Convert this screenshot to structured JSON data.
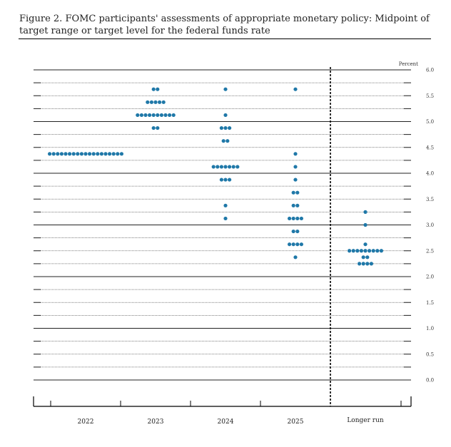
{
  "header": {
    "title": "Figure 2.  FOMC participants' assessments of appropriate monetary policy: Midpoint of target range or target level for the federal funds rate"
  },
  "chart_data": {
    "type": "scatter",
    "subtype": "dot-plot",
    "unit_label": "Percent",
    "ylim": [
      0,
      6
    ],
    "y_ticks": [
      "6.0",
      "5.5",
      "5.0",
      "4.5",
      "4.0",
      "3.5",
      "3.0",
      "2.5",
      "2.0",
      "1.5",
      "1.0",
      "0.5",
      "0.0"
    ],
    "categories": [
      "2022",
      "2023",
      "2024",
      "2025",
      "Longer run"
    ],
    "grid": true,
    "dot_color": "#1f78a8",
    "series": [
      {
        "category": "2022",
        "points": [
          {
            "y": 4.375,
            "count": 19
          }
        ]
      },
      {
        "category": "2023",
        "points": [
          {
            "y": 5.625,
            "count": 2
          },
          {
            "y": 5.375,
            "count": 5
          },
          {
            "y": 5.125,
            "count": 10
          },
          {
            "y": 4.875,
            "count": 2
          }
        ]
      },
      {
        "category": "2024",
        "points": [
          {
            "y": 5.625,
            "count": 1
          },
          {
            "y": 5.125,
            "count": 1
          },
          {
            "y": 4.875,
            "count": 3
          },
          {
            "y": 4.625,
            "count": 2
          },
          {
            "y": 4.125,
            "count": 7
          },
          {
            "y": 3.875,
            "count": 3
          },
          {
            "y": 3.375,
            "count": 1
          },
          {
            "y": 3.125,
            "count": 1
          }
        ]
      },
      {
        "category": "2025",
        "points": [
          {
            "y": 5.625,
            "count": 1
          },
          {
            "y": 4.375,
            "count": 1
          },
          {
            "y": 4.125,
            "count": 1
          },
          {
            "y": 3.875,
            "count": 1
          },
          {
            "y": 3.625,
            "count": 2
          },
          {
            "y": 3.375,
            "count": 2
          },
          {
            "y": 3.125,
            "count": 4
          },
          {
            "y": 2.875,
            "count": 2
          },
          {
            "y": 2.625,
            "count": 4
          },
          {
            "y": 2.375,
            "count": 1
          }
        ]
      },
      {
        "category": "Longer run",
        "points": [
          {
            "y": 3.25,
            "count": 1
          },
          {
            "y": 3.0,
            "count": 1
          },
          {
            "y": 2.625,
            "count": 1
          },
          {
            "y": 2.5,
            "count": 9
          },
          {
            "y": 2.375,
            "count": 2
          },
          {
            "y": 2.25,
            "count": 4
          }
        ]
      }
    ]
  }
}
